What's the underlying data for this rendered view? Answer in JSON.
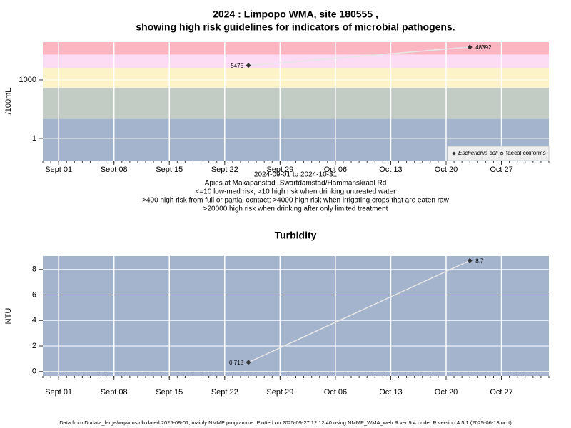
{
  "chart_data": [
    {
      "type": "line",
      "title": [
        "2024 : Limpopo WMA, site 180555 ,",
        "showing high risk guidelines for indicators of microbial pathogens."
      ],
      "ylabel": "/100mL",
      "log": true,
      "x": [
        "2024-09-25",
        "2024-10-23"
      ],
      "xlim": [
        "2024-08-30",
        "2024-11-02"
      ],
      "xticks": [
        {
          "value": "2024-09-01",
          "label": "Sept 01"
        },
        {
          "value": "2024-09-08",
          "label": "Sept 08"
        },
        {
          "value": "2024-09-15",
          "label": "Sept 15"
        },
        {
          "value": "2024-09-22",
          "label": "Sept 22"
        },
        {
          "value": "2024-09-29",
          "label": "Sept 29"
        },
        {
          "value": "2024-10-06",
          "label": "Oct 06"
        },
        {
          "value": "2024-10-13",
          "label": "Oct 13"
        },
        {
          "value": "2024-10-20",
          "label": "Oct 20"
        },
        {
          "value": "2024-10-27",
          "label": "Oct 27"
        }
      ],
      "ylim": [
        0.067,
        87000
      ],
      "yticks": [
        1,
        1000
      ],
      "grid": true,
      "bands": {
        "thresholds": [
          10,
          400,
          4000,
          20000
        ],
        "colors": [
          "#a3b4cc",
          "#c3ccc4",
          "#fdf3c8",
          "#fcdcf5",
          "#fbb6c2"
        ]
      },
      "series": [
        {
          "name": "Escherichia coli",
          "marker": "diamond",
          "color": "#333333",
          "line_color": "#e6e6e6",
          "values": [
            5475,
            48392
          ]
        },
        {
          "name": "faecal coliforms",
          "marker": "circle",
          "color": "#333333",
          "line_color": "#e6e6e6",
          "values": [
            null,
            null
          ]
        }
      ],
      "legend": "bottom-right",
      "annotations": [
        "2024-09-01 to 2024-10-31",
        "Apies at Makapanstad -Swartdamstad/Hammanskraal Rd",
        "<=10 low-med risk; >10 high risk when drinking untreated water",
        ">400 high risk from full or partial contact; >4000 high risk when irrigating crops that are eaten raw",
        ">20000 high risk when drinking after only limited treatment"
      ]
    },
    {
      "type": "line",
      "title": [
        "Turbidity"
      ],
      "ylabel": "NTU",
      "log": false,
      "x": [
        "2024-09-25",
        "2024-10-23"
      ],
      "xlim": [
        "2024-08-30",
        "2024-11-02"
      ],
      "xticks": [
        {
          "value": "2024-09-01",
          "label": "Sept 01"
        },
        {
          "value": "2024-09-08",
          "label": "Sept 08"
        },
        {
          "value": "2024-09-15",
          "label": "Sept 15"
        },
        {
          "value": "2024-09-22",
          "label": "Sept 22"
        },
        {
          "value": "2024-09-29",
          "label": "Sept 29"
        },
        {
          "value": "2024-10-06",
          "label": "Oct 06"
        },
        {
          "value": "2024-10-13",
          "label": "Oct 13"
        },
        {
          "value": "2024-10-20",
          "label": "Oct 20"
        },
        {
          "value": "2024-10-27",
          "label": "Oct 27"
        }
      ],
      "ylim": [
        -0.35,
        9.05
      ],
      "yticks": [
        0,
        2,
        4,
        6,
        8
      ],
      "grid": true,
      "background": "#a3b4cc",
      "series": [
        {
          "name": "Turbidity",
          "marker": "diamond",
          "color": "#333333",
          "line_color": "#e6e6e6",
          "values": [
            0.718,
            8.7
          ]
        }
      ]
    }
  ],
  "footer": "Data from D:/data_large/wq/wms.db dated 2025-08-01, mainly NMMP programme. Plotted on 2025-09-27 12:12:40 using NMMP_WMA_web.R ver 9.4 under R version 4.5.1 (2025-06-13 ucrt)"
}
